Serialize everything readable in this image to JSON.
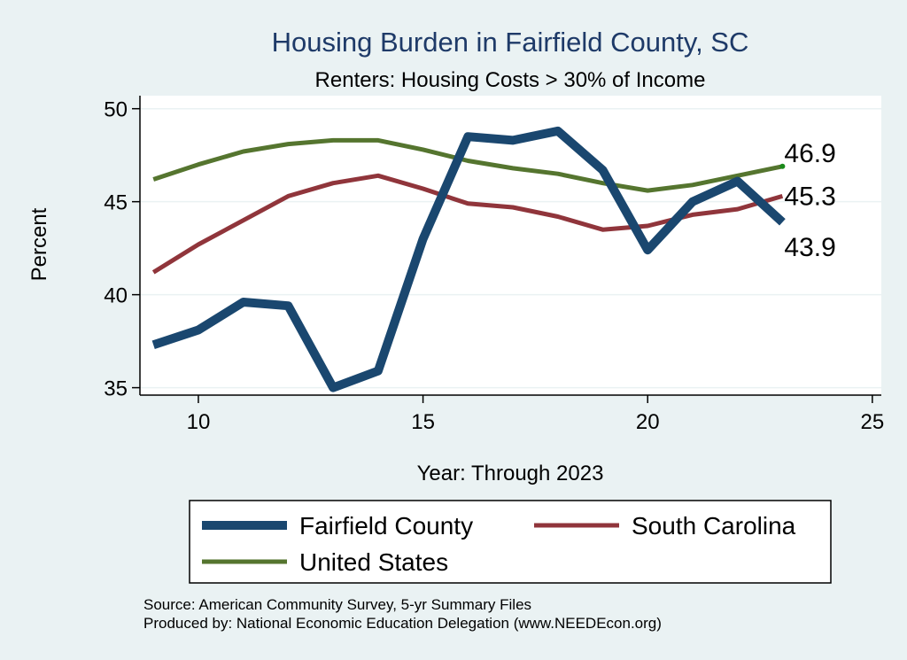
{
  "chart_data": {
    "type": "line",
    "title": "Housing Burden in Fairfield County, SC",
    "subtitle": "Renters: Housing Costs > 30% of Income",
    "xlabel": "Year: Through 2023",
    "ylabel": "Percent",
    "xlim": [
      8.7,
      25.2
    ],
    "ylim": [
      34.6,
      50.7
    ],
    "xticks": [
      10,
      15,
      20,
      25
    ],
    "yticks": [
      35,
      40,
      45,
      50
    ],
    "grid": "horizontal",
    "legend_position": "bottom",
    "x": [
      9,
      10,
      11,
      12,
      13,
      14,
      15,
      16,
      17,
      18,
      19,
      20,
      21,
      22,
      23
    ],
    "series": [
      {
        "name": "Fairfield County",
        "color": "#1a476f",
        "values": [
          37.3,
          38.1,
          39.6,
          39.4,
          35.0,
          35.9,
          43.0,
          48.5,
          48.3,
          48.8,
          46.7,
          42.4,
          45.0,
          46.1,
          43.9
        ],
        "end_label": "43.9"
      },
      {
        "name": "South Carolina",
        "color": "#90353b",
        "values": [
          41.2,
          42.7,
          44.0,
          45.3,
          46.0,
          46.4,
          45.7,
          44.9,
          44.7,
          44.2,
          43.5,
          43.7,
          44.3,
          44.6,
          45.3
        ],
        "end_label": "45.3"
      },
      {
        "name": "United States",
        "color": "#55752f",
        "values": [
          46.2,
          47.0,
          47.7,
          48.1,
          48.3,
          48.3,
          47.8,
          47.2,
          46.8,
          46.5,
          46.0,
          45.6,
          45.9,
          46.4,
          46.9
        ],
        "end_label": "46.9"
      }
    ],
    "notes": [
      "Source: American Community Survey, 5-yr Summary Files",
      "Produced by: National Economic Education Delegation (www.NEEDEcon.org)"
    ]
  }
}
